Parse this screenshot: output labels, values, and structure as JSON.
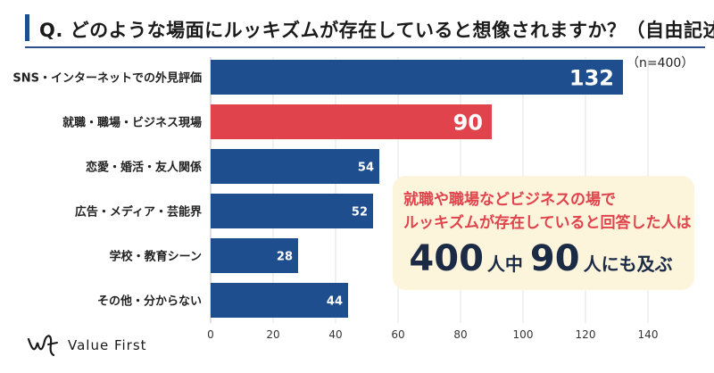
{
  "header": {
    "title": "Q. どのような場面にルッキズムが存在していると想像されますか？（自由記述）",
    "sample_note": "（n=400）"
  },
  "chart_data": {
    "type": "bar",
    "orientation": "horizontal",
    "categories": [
      "SNS・インターネットでの外見評価",
      "就職・職場・ビジネス現場",
      "恋愛・婚活・友人関係",
      "広告・メディア・芸能界",
      "学校・教育シーン",
      "その他・分からない"
    ],
    "values": [
      132,
      90,
      54,
      52,
      28,
      44
    ],
    "bar_colors": [
      "#1f4e8f",
      "#e0434c",
      "#1f4e8f",
      "#1f4e8f",
      "#1f4e8f",
      "#1f4e8f"
    ],
    "xlim": [
      0,
      150
    ],
    "xticks": [
      0,
      20,
      40,
      60,
      80,
      100,
      120,
      140
    ],
    "grid": true
  },
  "callout": {
    "line1": "就職や職場などビジネスの場で",
    "line2": "ルッキズムが存在していると回答した人は",
    "num1": "400",
    "txt1": "人中",
    "num2": "90",
    "txt2": "人にも及ぶ"
  },
  "logo": {
    "text": "Value First",
    "icon": "value-first-logo-mark"
  },
  "colors": {
    "primary": "#1f4e8f",
    "accent": "#e0434c",
    "callout_bg": "#fdf4dc"
  }
}
